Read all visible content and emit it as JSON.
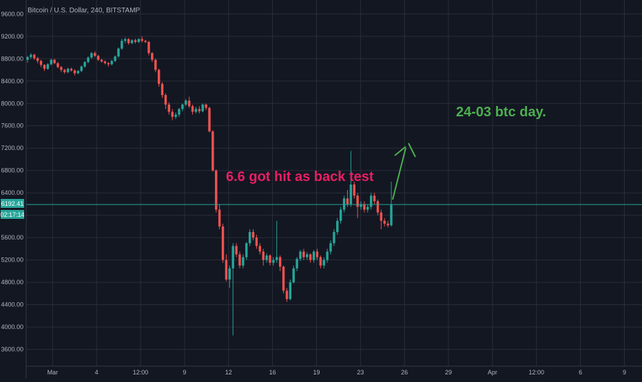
{
  "header": {
    "title": "Bitcoin / U.S. Dollar, 240, BITSTAMP"
  },
  "colors": {
    "background": "#131722",
    "grid": "#2a2e39",
    "up": "#26a69a",
    "down": "#ef5350",
    "axis_text": "#b2b5be",
    "price_line": "#26a69a",
    "annotation_pink": "#e91e63",
    "annotation_green": "#4caf50"
  },
  "price_tags": {
    "last_price": "6192.41",
    "countdown": "02:17:14"
  },
  "annotations": {
    "backtest": "6.6 got hit as back test",
    "day": "24-03 btc day."
  },
  "chart_data": {
    "type": "candlestick",
    "title": "Bitcoin / U.S. Dollar, 240, BITSTAMP",
    "y_ticks": [
      "3600.00",
      "4000.00",
      "4400.00",
      "4800.00",
      "5200.00",
      "5600.00",
      "6000.00",
      "6400.00",
      "6800.00",
      "7200.00",
      "7600.00",
      "8000.00",
      "8400.00",
      "8800.00",
      "9200.00",
      "9600.00"
    ],
    "x_ticks": [
      "Mar",
      "4",
      "12:00",
      "9",
      "12",
      "16",
      "19",
      "23",
      "26",
      "29",
      "Apr",
      "12:00",
      "6",
      "9"
    ],
    "ylim": [
      3300,
      9850
    ],
    "last_price": 6192.41,
    "candles": [
      [
        8780,
        8830,
        8730,
        8850
      ],
      [
        8830,
        8870,
        8800,
        8900
      ],
      [
        8870,
        8810,
        8780,
        8890
      ],
      [
        8810,
        8760,
        8720,
        8830
      ],
      [
        8760,
        8690,
        8650,
        8780
      ],
      [
        8690,
        8620,
        8580,
        8700
      ],
      [
        8620,
        8700,
        8600,
        8720
      ],
      [
        8700,
        8780,
        8680,
        8800
      ],
      [
        8780,
        8720,
        8700,
        8800
      ],
      [
        8720,
        8650,
        8630,
        8740
      ],
      [
        8650,
        8600,
        8560,
        8670
      ],
      [
        8600,
        8560,
        8530,
        8620
      ],
      [
        8560,
        8620,
        8540,
        8640
      ],
      [
        8620,
        8590,
        8570,
        8640
      ],
      [
        8590,
        8540,
        8500,
        8610
      ],
      [
        8540,
        8580,
        8520,
        8600
      ],
      [
        8580,
        8660,
        8560,
        8680
      ],
      [
        8660,
        8740,
        8640,
        8760
      ],
      [
        8740,
        8820,
        8720,
        8840
      ],
      [
        8820,
        8900,
        8800,
        8920
      ],
      [
        8900,
        8850,
        8830,
        8930
      ],
      [
        8850,
        8780,
        8760,
        8870
      ],
      [
        8780,
        8750,
        8730,
        8800
      ],
      [
        8750,
        8720,
        8700,
        8770
      ],
      [
        8720,
        8700,
        8660,
        8740
      ],
      [
        8700,
        8760,
        8680,
        8780
      ],
      [
        8760,
        8840,
        8740,
        8860
      ],
      [
        8840,
        8980,
        8820,
        9000
      ],
      [
        8980,
        9120,
        8960,
        9160
      ],
      [
        9120,
        9150,
        9080,
        9180
      ],
      [
        9150,
        9080,
        9050,
        9170
      ],
      [
        9080,
        9130,
        9060,
        9150
      ],
      [
        9130,
        9100,
        9070,
        9160
      ],
      [
        9100,
        9150,
        9080,
        9170
      ],
      [
        9150,
        9120,
        9090,
        9200
      ],
      [
        9120,
        9100,
        9080,
        9140
      ],
      [
        9100,
        8900,
        8860,
        9120
      ],
      [
        8900,
        8780,
        8740,
        8920
      ],
      [
        8780,
        8600,
        8560,
        8800
      ],
      [
        8600,
        8350,
        8300,
        8620
      ],
      [
        8350,
        8150,
        8100,
        8380
      ],
      [
        8150,
        7980,
        7900,
        8180
      ],
      [
        7980,
        7850,
        7800,
        8020
      ],
      [
        7850,
        7760,
        7700,
        7900
      ],
      [
        7760,
        7800,
        7720,
        7840
      ],
      [
        7800,
        7900,
        7760,
        7920
      ],
      [
        7900,
        7980,
        7860,
        8000
      ],
      [
        7980,
        8050,
        7950,
        8080
      ],
      [
        8050,
        7950,
        7920,
        8120
      ],
      [
        7950,
        7850,
        7800,
        7980
      ],
      [
        7850,
        7900,
        7820,
        7940
      ],
      [
        7900,
        7860,
        7820,
        7950
      ],
      [
        7860,
        7980,
        7840,
        8000
      ],
      [
        7980,
        7920,
        7880,
        8000
      ],
      [
        7920,
        7500,
        7480,
        7940
      ],
      [
        7500,
        6800,
        6780,
        7520
      ],
      [
        6800,
        6100,
        6050,
        6820
      ],
      [
        6100,
        5800,
        5750,
        6200
      ],
      [
        5800,
        5200,
        5150,
        5850
      ],
      [
        5200,
        4850,
        4820,
        5300
      ],
      [
        4850,
        5050,
        4700,
        5100
      ],
      [
        5050,
        5450,
        3850,
        5500
      ],
      [
        5450,
        5300,
        5250,
        5500
      ],
      [
        5300,
        5100,
        5050,
        5350
      ],
      [
        5100,
        5250,
        5050,
        5300
      ],
      [
        5250,
        5500,
        5200,
        5520
      ],
      [
        5500,
        5700,
        5450,
        5750
      ],
      [
        5700,
        5600,
        5550,
        5750
      ],
      [
        5600,
        5450,
        5400,
        5650
      ],
      [
        5450,
        5350,
        5300,
        5500
      ],
      [
        5350,
        5200,
        5100,
        5400
      ],
      [
        5200,
        5280,
        5150,
        5320
      ],
      [
        5280,
        5150,
        5100,
        5300
      ],
      [
        5150,
        5200,
        5100,
        5250
      ],
      [
        5200,
        5250,
        5150,
        5900
      ],
      [
        5250,
        5080,
        5000,
        5280
      ],
      [
        5080,
        4650,
        4600,
        5100
      ],
      [
        4650,
        4500,
        4450,
        4700
      ],
      [
        4500,
        4800,
        4480,
        4850
      ],
      [
        4800,
        5050,
        4780,
        5100
      ],
      [
        5050,
        5220,
        5000,
        5250
      ],
      [
        5220,
        5350,
        5180,
        5380
      ],
      [
        5350,
        5250,
        5200,
        5400
      ],
      [
        5250,
        5300,
        5200,
        5340
      ],
      [
        5300,
        5200,
        5150,
        5320
      ],
      [
        5200,
        5350,
        5150,
        5380
      ],
      [
        5350,
        5250,
        5200,
        5400
      ],
      [
        5250,
        5100,
        5050,
        5280
      ],
      [
        5100,
        5200,
        5050,
        5250
      ],
      [
        5200,
        5350,
        5150,
        5400
      ],
      [
        5350,
        5500,
        5300,
        5550
      ],
      [
        5500,
        5700,
        5450,
        5750
      ],
      [
        5700,
        5900,
        5650,
        5950
      ],
      [
        5900,
        6100,
        5850,
        6150
      ],
      [
        6100,
        6300,
        6050,
        6350
      ],
      [
        6300,
        6200,
        6150,
        6450
      ],
      [
        6200,
        6550,
        6150,
        7150
      ],
      [
        6550,
        6350,
        6300,
        6600
      ],
      [
        6350,
        6150,
        5950,
        6400
      ],
      [
        6150,
        6200,
        6100,
        6250
      ],
      [
        6200,
        6100,
        6050,
        6250
      ],
      [
        6100,
        6150,
        6050,
        6200
      ],
      [
        6150,
        6350,
        6100,
        6400
      ],
      [
        6350,
        6250,
        6200,
        6400
      ],
      [
        6250,
        6050,
        6000,
        6280
      ],
      [
        6050,
        5900,
        5750,
        6100
      ],
      [
        5900,
        5850,
        5800,
        5950
      ],
      [
        5850,
        5820,
        5780,
        5900
      ],
      [
        5820,
        6190,
        5800,
        6600
      ]
    ]
  }
}
